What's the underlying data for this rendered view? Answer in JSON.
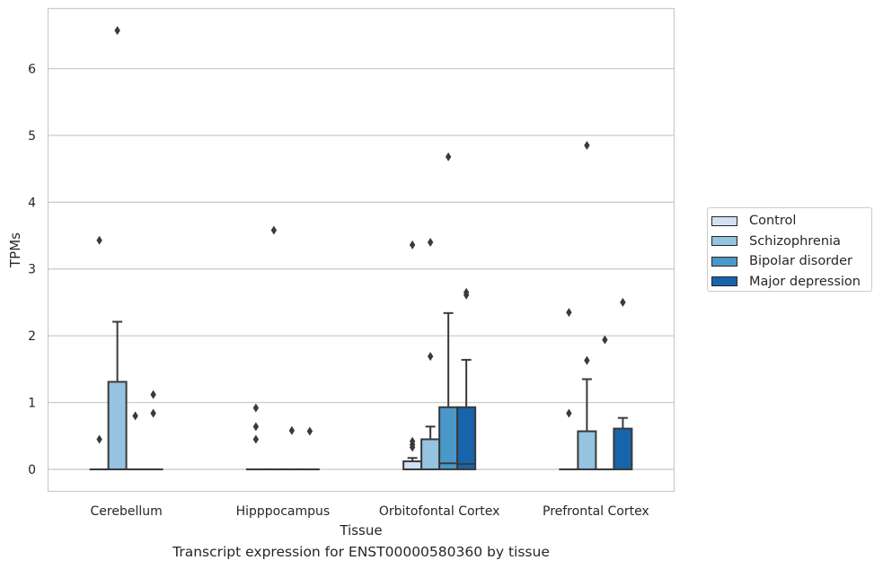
{
  "caption": "Transcript expression for ENST00000580360 by tissue",
  "chart_data": {
    "type": "box",
    "xlabel": "Tissue",
    "ylabel": "TPMs",
    "ylim": [
      -0.33,
      6.9
    ],
    "yticks": [
      0,
      1,
      2,
      3,
      4,
      5,
      6
    ],
    "categories": [
      "Cerebellum",
      "Hipppocampus",
      "Orbitofontal Cortex",
      "Prefrontal Cortex"
    ],
    "grid": true,
    "legend_position": "right",
    "series": [
      {
        "name": "Control",
        "color": "#d0e1f2",
        "boxes": [
          {
            "q1": 0,
            "median": 0,
            "q3": 0,
            "whisker_low": 0,
            "whisker_high": 0,
            "outliers": [
              0.45,
              3.43
            ]
          },
          {
            "q1": 0,
            "median": 0,
            "q3": 0,
            "whisker_low": 0,
            "whisker_high": 0,
            "outliers": [
              0.45,
              0.64,
              0.92
            ]
          },
          {
            "q1": 0,
            "median": 0,
            "q3": 0.12,
            "whisker_low": 0,
            "whisker_high": 0.17,
            "outliers": [
              0.33,
              0.37,
              0.42,
              3.36
            ]
          },
          {
            "q1": 0,
            "median": 0,
            "q3": 0,
            "whisker_low": 0,
            "whisker_high": 0,
            "outliers": [
              0.84,
              2.35
            ]
          }
        ]
      },
      {
        "name": "Schizophrenia",
        "color": "#94c4df",
        "boxes": [
          {
            "q1": 0,
            "median": 0,
            "q3": 1.31,
            "whisker_low": 0,
            "whisker_high": 2.21,
            "outliers": [
              6.57
            ]
          },
          {
            "q1": 0,
            "median": 0,
            "q3": 0,
            "whisker_low": 0,
            "whisker_high": 0,
            "outliers": [
              3.58
            ]
          },
          {
            "q1": 0,
            "median": 0,
            "q3": 0.45,
            "whisker_low": 0,
            "whisker_high": 0.64,
            "outliers": [
              1.69,
              3.4
            ]
          },
          {
            "q1": 0,
            "median": 0,
            "q3": 0.57,
            "whisker_low": 0,
            "whisker_high": 1.35,
            "outliers": [
              1.63,
              4.85
            ]
          }
        ]
      },
      {
        "name": "Bipolar disorder",
        "color": "#4a98c9",
        "boxes": [
          {
            "q1": 0,
            "median": 0,
            "q3": 0,
            "whisker_low": 0,
            "whisker_high": 0,
            "outliers": [
              0.8
            ]
          },
          {
            "q1": 0,
            "median": 0,
            "q3": 0,
            "whisker_low": 0,
            "whisker_high": 0,
            "outliers": [
              0.58
            ]
          },
          {
            "q1": 0,
            "median": 0.09,
            "q3": 0.93,
            "whisker_low": 0,
            "whisker_high": 2.34,
            "outliers": [
              4.68
            ]
          },
          {
            "q1": 0,
            "median": 0,
            "q3": 0,
            "whisker_low": 0,
            "whisker_high": 0,
            "outliers": [
              1.94
            ]
          }
        ]
      },
      {
        "name": "Major depression",
        "color": "#1764ab",
        "boxes": [
          {
            "q1": 0,
            "median": 0,
            "q3": 0,
            "whisker_low": 0,
            "whisker_high": 0,
            "outliers": [
              0.84,
              1.12
            ]
          },
          {
            "q1": 0,
            "median": 0,
            "q3": 0,
            "whisker_low": 0,
            "whisker_high": 0,
            "outliers": [
              0.57
            ]
          },
          {
            "q1": 0,
            "median": 0.08,
            "q3": 0.93,
            "whisker_low": 0,
            "whisker_high": 1.64,
            "outliers": [
              2.61,
              2.65
            ]
          },
          {
            "q1": 0,
            "median": 0,
            "q3": 0.61,
            "whisker_low": 0,
            "whisker_high": 0.77,
            "outliers": [
              2.5
            ]
          }
        ]
      }
    ]
  }
}
